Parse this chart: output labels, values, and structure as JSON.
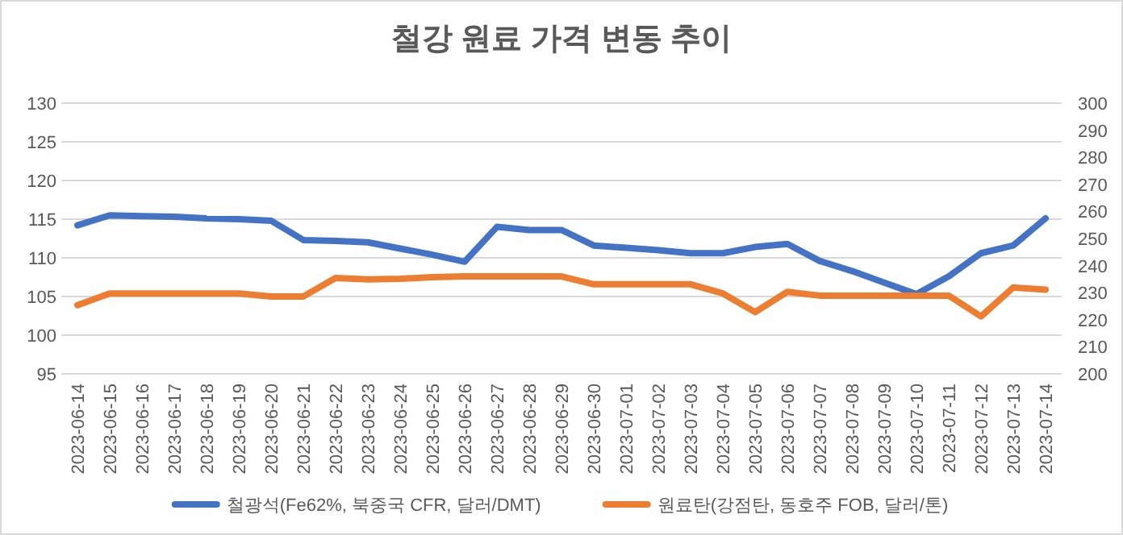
{
  "chart_data": {
    "type": "line",
    "title": "철강 원료 가격 변동 추이",
    "categories": [
      "2023-06-14",
      "2023-06-15",
      "2023-06-16",
      "2023-06-17",
      "2023-06-18",
      "2023-06-19",
      "2023-06-20",
      "2023-06-21",
      "2023-06-22",
      "2023-06-23",
      "2023-06-24",
      "2023-06-25",
      "2023-06-26",
      "2023-06-27",
      "2023-06-28",
      "2023-06-29",
      "2023-06-30",
      "2023-07-01",
      "2023-07-02",
      "2023-07-03",
      "2023-07-04",
      "2023-07-05",
      "2023-07-06",
      "2023-07-07",
      "2023-07-08",
      "2023-07-09",
      "2023-07-10",
      "2023-07-11",
      "2023-07-12",
      "2023-07-13",
      "2023-07-14"
    ],
    "series": [
      {
        "name": "철광석(Fe62%, 북중국 CFR, 달러/DMT)",
        "color": "#4472c4",
        "values": [
          114.2,
          115.5,
          115.4,
          115.3,
          115.1,
          115.0,
          114.8,
          112.3,
          112.2,
          112.0,
          111.2,
          110.4,
          109.5,
          114.0,
          113.6,
          113.6,
          111.6,
          111.3,
          111.0,
          110.6,
          110.6,
          111.4,
          111.8,
          109.6,
          108.3,
          106.8,
          105.3,
          107.6,
          110.6,
          111.6,
          115.1
        ]
      },
      {
        "name": "원료탄(강점탄, 동호주 FOB, 달러/톤)",
        "color": "#ed7d31",
        "axis": "y2",
        "values": [
          225.4,
          229.7,
          229.7,
          229.7,
          229.7,
          229.7,
          228.6,
          228.6,
          235.4,
          234.9,
          235.1,
          235.7,
          236.0,
          236.0,
          236.0,
          236.0,
          233.1,
          233.1,
          233.1,
          233.1,
          229.7,
          222.8,
          230.3,
          228.9,
          228.9,
          228.9,
          228.9,
          228.9,
          221.2,
          231.9,
          231.1
        ]
      }
    ],
    "ylim": [
      95,
      130
    ],
    "yticks": [
      95,
      100,
      105,
      110,
      115,
      120,
      125,
      130
    ],
    "y2lim": [
      200,
      300
    ],
    "y2ticks": [
      200,
      210,
      220,
      230,
      240,
      250,
      260,
      270,
      280,
      290,
      300
    ],
    "grid": "y",
    "legend": "bottom"
  }
}
